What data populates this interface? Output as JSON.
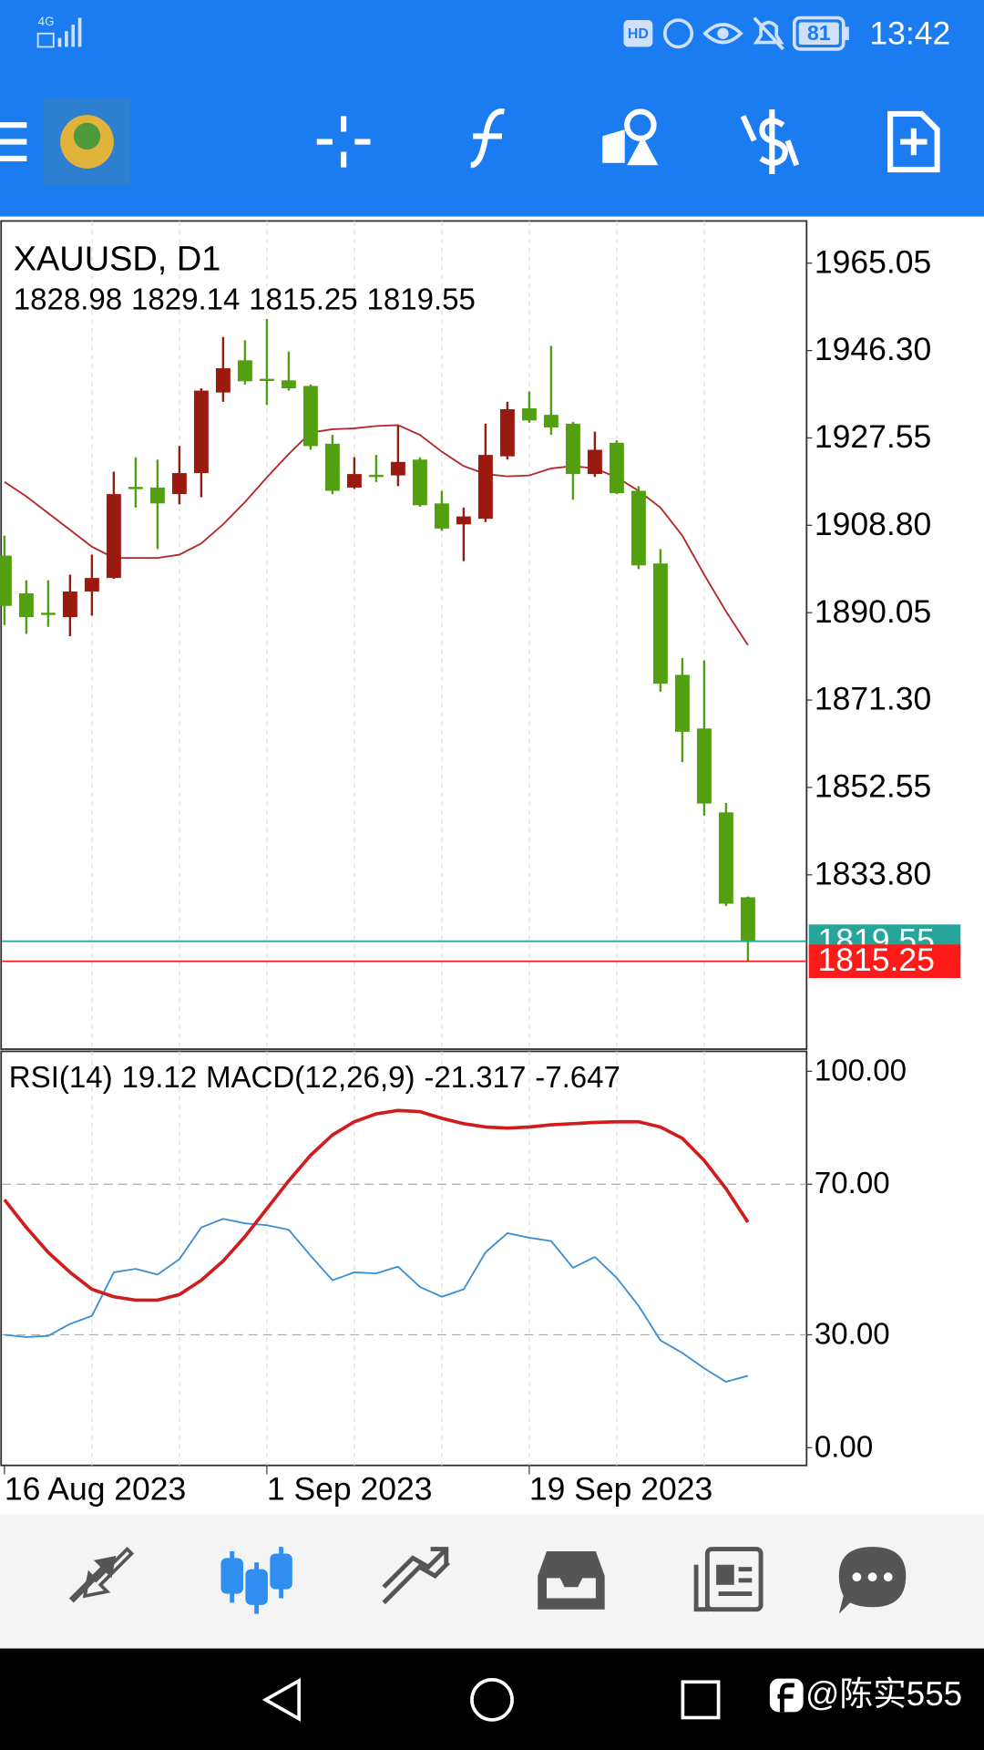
{
  "status_bar": {
    "network": "4G",
    "hd": "HD",
    "battery": "81",
    "time": "13:42"
  },
  "watermark": "@陈实555",
  "chart_data": [
    {
      "type": "candlestick",
      "title": "XAUUSD, D1",
      "categories": [
        "16 Aug 2023",
        null,
        null,
        null,
        null,
        null,
        null,
        null,
        null,
        null,
        null,
        null,
        "1 Sep 2023",
        null,
        null,
        null,
        null,
        null,
        null,
        null,
        null,
        null,
        null,
        null,
        "19 Sep 2023",
        null,
        null,
        null,
        null,
        null,
        null,
        null,
        null,
        null,
        null
      ],
      "open": [
        1902.3,
        1894.2,
        1889.8,
        1889.1,
        1894.6,
        1897.5,
        1916.8,
        1916.9,
        1915.5,
        1920.0,
        1937.3,
        1944.2,
        1940.0,
        1939.9,
        1938.7,
        1926.3,
        1916.9,
        1919.4,
        1919.5,
        1922.9,
        1913.5,
        1909.0,
        1910.2,
        1923.6,
        1933.9,
        1932.5,
        1930.6,
        1919.8,
        1926.5,
        1916.2,
        1900.6,
        1876.7,
        1865.2,
        1847.2,
        1828.98
      ],
      "high": [
        1906.6,
        1897.0,
        1897.0,
        1898.2,
        1902.5,
        1920.3,
        1923.4,
        1922.9,
        1925.8,
        1938.2,
        1949.2,
        1948.5,
        1953.1,
        1946.1,
        1939.0,
        1928.2,
        1923.4,
        1923.9,
        1930.1,
        1923.4,
        1916.2,
        1912.6,
        1930.6,
        1935.3,
        1937.5,
        1947.3,
        1931.0,
        1928.9,
        1927.0,
        1917.2,
        1903.7,
        1880.3,
        1879.8,
        1849.2,
        1829.14
      ],
      "low": [
        1887.4,
        1885.5,
        1887.0,
        1885.0,
        1889.4,
        1897.3,
        1912.6,
        1903.7,
        1913.3,
        1914.8,
        1935.3,
        1939.0,
        1934.6,
        1937.7,
        1925.0,
        1915.5,
        1916.6,
        1918.1,
        1917.2,
        1912.8,
        1907.6,
        1901.1,
        1909.5,
        1922.9,
        1930.8,
        1928.2,
        1914.3,
        1919.2,
        1915.5,
        1899.4,
        1873.1,
        1858.0,
        1846.5,
        1827.1,
        1815.25
      ],
      "close": [
        1891.5,
        1889.1,
        1889.4,
        1894.6,
        1897.5,
        1915.5,
        1916.6,
        1913.5,
        1920.0,
        1937.7,
        1942.5,
        1939.7,
        1939.8,
        1938.2,
        1925.8,
        1916.2,
        1919.8,
        1919.2,
        1922.4,
        1913.1,
        1908.1,
        1910.7,
        1923.9,
        1933.7,
        1931.3,
        1929.8,
        1919.8,
        1925.0,
        1915.7,
        1900.2,
        1874.8,
        1864.5,
        1849.1,
        1827.6,
        1819.55
      ],
      "up_color": "#9a1a10",
      "down_color": "#52a010",
      "ma": {
        "color": "#b3262a",
        "values": [
          1918.1,
          1915.0,
          1911.4,
          1907.8,
          1904.2,
          1901.8,
          1901.8,
          1901.8,
          1902.5,
          1904.9,
          1909.0,
          1913.8,
          1919.1,
          1924.1,
          1928.7,
          1929.4,
          1929.6,
          1930.1,
          1930.3,
          1928.2,
          1924.6,
          1921.5,
          1919.8,
          1919.3,
          1919.5,
          1921.0,
          1921.5,
          1921.0,
          1919.1,
          1916.2,
          1912.6,
          1906.6,
          1898.2,
          1890.3,
          1883.1
        ]
      },
      "price_lines": [
        {
          "value": 1819.55,
          "color": "#26a69a"
        },
        {
          "value": 1815.25,
          "color": "#ff1a1a"
        }
      ],
      "ylim": [
        1796.4,
        1974.1
      ],
      "yticks": [
        1965.05,
        {
          "value": 1946.3,
          "label": "1946.30"
        },
        1927.55,
        {
          "value": 1908.8,
          "label": "1908.80"
        },
        1890.05,
        {
          "value": 1871.3,
          "label": "1871.30"
        },
        1852.55,
        {
          "value": 1833.8,
          "label": "1833.80"
        }
      ],
      "grid": true
    },
    {
      "type": "line",
      "title": "RSI(14)",
      "subtitle": "MACD(12,26,9)",
      "macd_values": [
        -21.317,
        -7.647
      ],
      "series": [
        {
          "color": "#3a8fd4",
          "values": [
            30.0,
            29.4,
            29.7,
            32.9,
            35.0,
            46.6,
            47.5,
            46.0,
            50.1,
            58.5,
            60.8,
            59.6,
            59.1,
            57.9,
            51.0,
            44.5,
            46.6,
            46.3,
            48.1,
            42.7,
            40.1,
            42.1,
            51.9,
            57.0,
            55.8,
            54.9,
            47.8,
            50.7,
            45.1,
            37.7,
            28.5,
            25.2,
            21.1,
            17.5,
            19.12
          ]
        },
        {
          "color": "#d01c1c",
          "values": [
            65.9,
            58.5,
            51.9,
            46.6,
            42.1,
            40.1,
            39.2,
            39.2,
            40.7,
            44.5,
            49.6,
            56.1,
            63.5,
            70.9,
            77.7,
            83.1,
            86.6,
            88.7,
            89.6,
            89.3,
            87.5,
            86.1,
            85.2,
            84.9,
            85.2,
            85.8,
            86.1,
            86.4,
            86.6,
            86.6,
            85.2,
            82.2,
            76.3,
            68.8,
            59.9
          ]
        }
      ],
      "levels": [
        30,
        70
      ],
      "ylim": [
        -4.7,
        105.3
      ],
      "yticks": [
        {
          "value": 100,
          "label": "100.00"
        },
        {
          "value": 70,
          "label": "70.00"
        },
        {
          "value": 30,
          "label": "30.00"
        },
        {
          "value": 0,
          "label": "0.00"
        }
      ]
    }
  ]
}
